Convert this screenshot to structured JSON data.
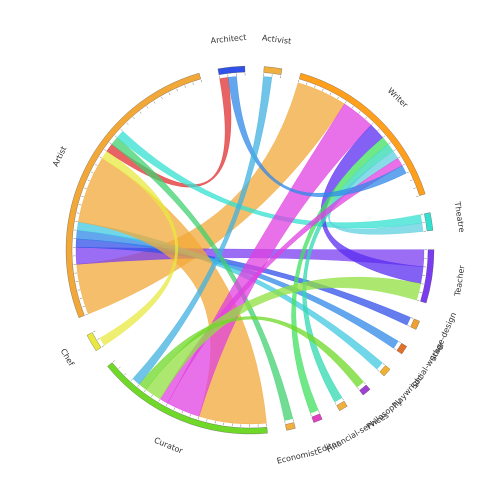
{
  "chart_data": {
    "type": "chord",
    "title": "",
    "groups": [
      {
        "name": "Writer",
        "value": 20,
        "color": "#ff9f1c"
      },
      {
        "name": "Theatre",
        "value": 2,
        "color": "#33e0d0"
      },
      {
        "name": "Teacher",
        "value": 6,
        "color": "#7a3cf0"
      },
      {
        "name": "Stage-design",
        "value": 1,
        "color": "#f0a030"
      },
      {
        "name": "Social-worker",
        "value": 1,
        "color": "#e0702a"
      },
      {
        "name": "Playwright",
        "value": 1,
        "color": "#f0b030"
      },
      {
        "name": "Philosophy",
        "value": 1,
        "color": "#a040d0"
      },
      {
        "name": "Financial-services",
        "value": 1,
        "color": "#f0b040"
      },
      {
        "name": "Editor",
        "value": 1,
        "color": "#e040c0"
      },
      {
        "name": "Economist",
        "value": 1,
        "color": "#f0b040"
      },
      {
        "name": "Curator",
        "value": 20,
        "color": "#6fd828"
      },
      {
        "name": "Chef",
        "value": 2,
        "color": "#e8e840"
      },
      {
        "name": "Artist",
        "value": 34,
        "color": "#f2a838"
      },
      {
        "name": "Architect",
        "value": 3,
        "color": "#3050e8"
      },
      {
        "name": "Activist",
        "value": 2,
        "color": "#f0b040"
      }
    ],
    "chords": [
      {
        "source": "Artist",
        "target": "Writer",
        "value": 6,
        "color": "#f2a838"
      },
      {
        "source": "Artist",
        "target": "Teacher",
        "value": 2,
        "color": "#7a3cf0"
      },
      {
        "source": "Artist",
        "target": "Stage-design",
        "value": 1,
        "color": "#3050e8"
      },
      {
        "source": "Artist",
        "target": "Social-worker",
        "value": 1,
        "color": "#3088e8"
      },
      {
        "source": "Artist",
        "target": "Playwright",
        "value": 1,
        "color": "#40c8e0"
      },
      {
        "source": "Artist",
        "target": "Curator",
        "value": 8,
        "color": "#f2a838"
      },
      {
        "source": "Artist",
        "target": "Chef",
        "value": 1,
        "color": "#e8e840"
      },
      {
        "source": "Artist",
        "target": "Architect",
        "value": 1,
        "color": "#e03030"
      },
      {
        "source": "Artist",
        "target": "Economist",
        "value": 1,
        "color": "#40d070"
      },
      {
        "source": "Artist",
        "target": "Theatre",
        "value": 1,
        "color": "#33e0d0"
      },
      {
        "source": "Writer",
        "target": "Curator",
        "value": 4,
        "color": "#e040e0"
      },
      {
        "source": "Writer",
        "target": "Teacher",
        "value": 2,
        "color": "#5a2cf0"
      },
      {
        "source": "Writer",
        "target": "Editor",
        "value": 1,
        "color": "#40e060"
      },
      {
        "source": "Writer",
        "target": "Financial-services",
        "value": 1,
        "color": "#30d8b0"
      },
      {
        "source": "Writer",
        "target": "Theatre",
        "value": 1,
        "color": "#60d0e0"
      },
      {
        "source": "Writer",
        "target": "Curator",
        "value": 1,
        "color": "#e040e0"
      },
      {
        "source": "Curator",
        "target": "Teacher",
        "value": 2,
        "color": "#90e040"
      },
      {
        "source": "Curator",
        "target": "Philosophy",
        "value": 1,
        "color": "#6fd828"
      },
      {
        "source": "Architect",
        "target": "Writer",
        "value": 1,
        "color": "#3088e8"
      },
      {
        "source": "Activist",
        "target": "Curator",
        "value": 1,
        "color": "#40b0e0"
      }
    ]
  }
}
